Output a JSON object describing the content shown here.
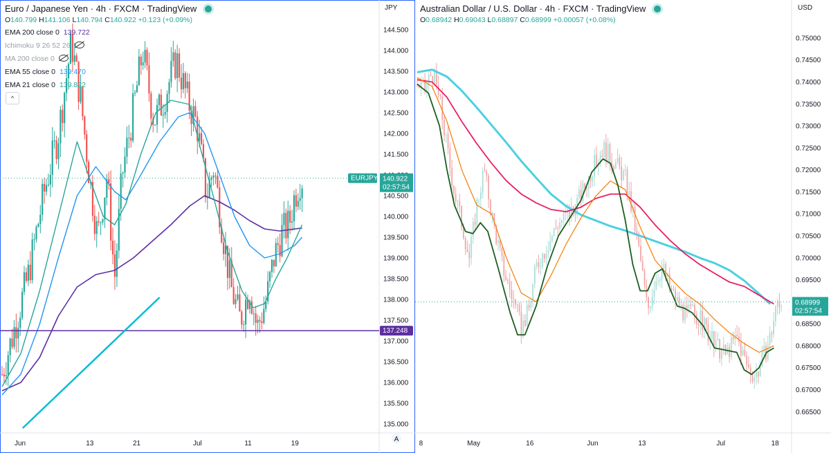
{
  "colors": {
    "up": "#26a69a",
    "down": "#ef5350",
    "upLight": "#a6dcd6",
    "downLight": "#f0a3a3",
    "ema200": "#5c2ea0",
    "ema55": "#2196f3",
    "ema21": "#26a69a",
    "hline": "#5c2ea0",
    "trend": "#00bcd4",
    "audEma200": "#e91e63",
    "audEma55": "#f57c00",
    "audMa": "#4dd0e1",
    "audDark": "#1b5e20"
  },
  "left": {
    "header": {
      "title": "Euro / Japanese Yen",
      "tf": "4h",
      "source": "FXCM",
      "brand": "TradingView"
    },
    "ohlc": {
      "o_label": "O",
      "o": "140.799",
      "h_label": "H",
      "h": "141.106",
      "l_label": "L",
      "l": "140.794",
      "c_label": "C",
      "c": "140.922",
      "chg": "+0.123 (+0.09%)"
    },
    "indicators": [
      {
        "name": "EMA 200 close 0",
        "value": "139.722",
        "color": "#5c2ea0"
      },
      {
        "name": "Ichimoku 9 26 52 26",
        "value": "",
        "color": "#9aa0a6"
      },
      {
        "name": "MA 200 close 0",
        "value": "",
        "color": "#9aa0a6"
      },
      {
        "name": "EMA 55 close 0",
        "value": "139.470",
        "color": "#2196f3"
      },
      {
        "name": "EMA 21 close 0",
        "value": "139.822",
        "color": "#26a69a"
      }
    ],
    "collapse": "^",
    "currency": "JPY",
    "scale_letter": "A",
    "symbol_tag": "EURJPY",
    "price_tag": "140.922",
    "countdown": "02:57:54",
    "line_tag": "137.248",
    "chart_data": {
      "type": "candlestick",
      "title": "Euro / Japanese Yen, 4h, FXCM",
      "ylim": [
        134.85,
        145.05
      ],
      "yticks": [
        "135.000",
        "135.500",
        "136.000",
        "136.500",
        "137.000",
        "137.500",
        "138.000",
        "138.500",
        "139.000",
        "139.500",
        "140.000",
        "140.500",
        "141.000",
        "141.500",
        "142.000",
        "142.500",
        "143.000",
        "143.500",
        "144.000",
        "144.500"
      ],
      "xticks": [
        {
          "label": "Jun",
          "t": 0.048
        },
        {
          "label": "13",
          "t": 0.234
        },
        {
          "label": "21",
          "t": 0.359
        },
        {
          "label": "Jul",
          "t": 0.521
        },
        {
          "label": "11",
          "t": 0.656
        },
        {
          "label": "19",
          "t": 0.781
        }
      ],
      "keypoints": [
        [
          0,
          136.2
        ],
        [
          0.03,
          137.2
        ],
        [
          0.07,
          138.6
        ],
        [
          0.11,
          140.5
        ],
        [
          0.15,
          142.0
        ],
        [
          0.185,
          144.2
        ],
        [
          0.21,
          142.8
        ],
        [
          0.235,
          140.8
        ],
        [
          0.255,
          139.5
        ],
        [
          0.28,
          141.0
        ],
        [
          0.3,
          138.5
        ],
        [
          0.32,
          141.0
        ],
        [
          0.345,
          142.3
        ],
        [
          0.375,
          144.0
        ],
        [
          0.405,
          142.3
        ],
        [
          0.43,
          142.8
        ],
        [
          0.465,
          143.8
        ],
        [
          0.495,
          142.8
        ],
        [
          0.52,
          142.2
        ],
        [
          0.545,
          140.5
        ],
        [
          0.565,
          141.2
        ],
        [
          0.59,
          139.5
        ],
        [
          0.61,
          138.3
        ],
        [
          0.635,
          137.5
        ],
        [
          0.66,
          138.3
        ],
        [
          0.68,
          137.3
        ],
        [
          0.705,
          138.0
        ],
        [
          0.725,
          139.0
        ],
        [
          0.745,
          139.6
        ],
        [
          0.765,
          139.8
        ],
        [
          0.78,
          140.5
        ],
        [
          0.795,
          140.9
        ]
      ],
      "ema21": [
        [
          0,
          135.9
        ],
        [
          0.05,
          136.7
        ],
        [
          0.1,
          138.2
        ],
        [
          0.15,
          140.0
        ],
        [
          0.2,
          141.8
        ],
        [
          0.23,
          141.0
        ],
        [
          0.27,
          140.0
        ],
        [
          0.3,
          139.8
        ],
        [
          0.33,
          140.3
        ],
        [
          0.37,
          141.5
        ],
        [
          0.41,
          142.5
        ],
        [
          0.45,
          142.8
        ],
        [
          0.5,
          142.7
        ],
        [
          0.53,
          141.6
        ],
        [
          0.56,
          140.6
        ],
        [
          0.6,
          139.2
        ],
        [
          0.64,
          138.2
        ],
        [
          0.67,
          137.8
        ],
        [
          0.7,
          137.9
        ],
        [
          0.73,
          138.5
        ],
        [
          0.76,
          139.0
        ],
        [
          0.8,
          139.8
        ]
      ],
      "ema55": [
        [
          0,
          135.7
        ],
        [
          0.05,
          136.2
        ],
        [
          0.1,
          137.4
        ],
        [
          0.15,
          139.0
        ],
        [
          0.2,
          140.5
        ],
        [
          0.25,
          141.2
        ],
        [
          0.3,
          140.6
        ],
        [
          0.33,
          140.4
        ],
        [
          0.37,
          141.0
        ],
        [
          0.42,
          141.8
        ],
        [
          0.47,
          142.4
        ],
        [
          0.5,
          142.5
        ],
        [
          0.54,
          142.0
        ],
        [
          0.58,
          141.0
        ],
        [
          0.62,
          140.0
        ],
        [
          0.66,
          139.3
        ],
        [
          0.7,
          139.0
        ],
        [
          0.74,
          139.1
        ],
        [
          0.78,
          139.3
        ],
        [
          0.8,
          139.5
        ]
      ],
      "ema200": [
        [
          0,
          135.8
        ],
        [
          0.05,
          136.0
        ],
        [
          0.1,
          136.6
        ],
        [
          0.15,
          137.6
        ],
        [
          0.2,
          138.3
        ],
        [
          0.25,
          138.6
        ],
        [
          0.3,
          138.7
        ],
        [
          0.35,
          139.0
        ],
        [
          0.4,
          139.4
        ],
        [
          0.45,
          139.8
        ],
        [
          0.5,
          140.25
        ],
        [
          0.54,
          140.5
        ],
        [
          0.58,
          140.35
        ],
        [
          0.62,
          140.15
        ],
        [
          0.66,
          139.9
        ],
        [
          0.7,
          139.7
        ],
        [
          0.74,
          139.65
        ],
        [
          0.78,
          139.7
        ],
        [
          0.8,
          139.72
        ]
      ],
      "hline": 137.248,
      "trendline": [
        [
          0.055,
          134.9
        ],
        [
          0.42,
          138.05
        ]
      ]
    }
  },
  "right": {
    "header": {
      "title": "Australian Dollar / U.S. Dollar",
      "tf": "4h",
      "source": "FXCM",
      "brand": "TradingView"
    },
    "ohlc": {
      "o_label": "O",
      "o": "0.68942",
      "h_label": "H",
      "h": "0.69043",
      "l_label": "L",
      "l": "0.68897",
      "c_label": "C",
      "c": "0.68999",
      "chg": "+0.00057 (+0.08%)"
    },
    "currency": "USD",
    "price_tag": "0.68999",
    "countdown": "02:57:54",
    "chart_data": {
      "type": "candlestick",
      "title": "Australian Dollar / U.S. Dollar, 4h, FXCM",
      "ylim": [
        0.6608,
        0.7555
      ],
      "yticks": [
        "0.66500",
        "0.67000",
        "0.67500",
        "0.68000",
        "0.68500",
        "0.69000",
        "0.69500",
        "0.70000",
        "0.70500",
        "0.71000",
        "0.71500",
        "0.72000",
        "0.72500",
        "0.73000",
        "0.73500",
        "0.74000",
        "0.74500",
        "0.75000"
      ],
      "xticks": [
        {
          "label": "8",
          "t": 0.01
        },
        {
          "label": "May",
          "t": 0.152
        },
        {
          "label": "16",
          "t": 0.303
        },
        {
          "label": "Jun",
          "t": 0.472
        },
        {
          "label": "13",
          "t": 0.605
        },
        {
          "label": "Jul",
          "t": 0.817
        },
        {
          "label": "18",
          "t": 0.963
        }
      ],
      "keypoints": [
        [
          0,
          0.7395
        ],
        [
          0.02,
          0.738
        ],
        [
          0.04,
          0.7425
        ],
        [
          0.06,
          0.736
        ],
        [
          0.08,
          0.725
        ],
        [
          0.1,
          0.715
        ],
        [
          0.12,
          0.708
        ],
        [
          0.14,
          0.7
        ],
        [
          0.16,
          0.712
        ],
        [
          0.18,
          0.72
        ],
        [
          0.2,
          0.71
        ],
        [
          0.23,
          0.698
        ],
        [
          0.26,
          0.69
        ],
        [
          0.28,
          0.684
        ],
        [
          0.3,
          0.688
        ],
        [
          0.32,
          0.698
        ],
        [
          0.35,
          0.703
        ],
        [
          0.38,
          0.708
        ],
        [
          0.41,
          0.71
        ],
        [
          0.44,
          0.714
        ],
        [
          0.47,
          0.72
        ],
        [
          0.5,
          0.725
        ],
        [
          0.53,
          0.722
        ],
        [
          0.56,
          0.718
        ],
        [
          0.58,
          0.71
        ],
        [
          0.6,
          0.7
        ],
        [
          0.62,
          0.688
        ],
        [
          0.64,
          0.695
        ],
        [
          0.66,
          0.698
        ],
        [
          0.68,
          0.693
        ],
        [
          0.7,
          0.69
        ],
        [
          0.72,
          0.687
        ],
        [
          0.74,
          0.688
        ],
        [
          0.77,
          0.685
        ],
        [
          0.8,
          0.68
        ],
        [
          0.83,
          0.678
        ],
        [
          0.86,
          0.682
        ],
        [
          0.89,
          0.675
        ],
        [
          0.91,
          0.673
        ],
        [
          0.93,
          0.677
        ],
        [
          0.95,
          0.682
        ],
        [
          0.97,
          0.69
        ]
      ],
      "emaDark": [
        [
          0,
          0.7395
        ],
        [
          0.03,
          0.7375
        ],
        [
          0.06,
          0.73
        ],
        [
          0.08,
          0.72
        ],
        [
          0.1,
          0.712
        ],
        [
          0.13,
          0.706
        ],
        [
          0.15,
          0.7055
        ],
        [
          0.17,
          0.708
        ],
        [
          0.19,
          0.706
        ],
        [
          0.22,
          0.697
        ],
        [
          0.25,
          0.6875
        ],
        [
          0.27,
          0.6825
        ],
        [
          0.29,
          0.6825
        ],
        [
          0.32,
          0.689
        ],
        [
          0.35,
          0.698
        ],
        [
          0.38,
          0.705
        ],
        [
          0.41,
          0.709
        ],
        [
          0.44,
          0.713
        ],
        [
          0.47,
          0.7195
        ],
        [
          0.5,
          0.7225
        ],
        [
          0.52,
          0.7215
        ],
        [
          0.54,
          0.7165
        ],
        [
          0.56,
          0.7085
        ],
        [
          0.58,
          0.6985
        ],
        [
          0.6,
          0.6925
        ],
        [
          0.62,
          0.6925
        ],
        [
          0.64,
          0.6965
        ],
        [
          0.66,
          0.6975
        ],
        [
          0.68,
          0.693
        ],
        [
          0.7,
          0.689
        ],
        [
          0.72,
          0.6885
        ],
        [
          0.74,
          0.6875
        ],
        [
          0.77,
          0.6845
        ],
        [
          0.8,
          0.6795
        ],
        [
          0.83,
          0.679
        ],
        [
          0.86,
          0.6785
        ],
        [
          0.88,
          0.6745
        ],
        [
          0.9,
          0.6735
        ],
        [
          0.92,
          0.675
        ],
        [
          0.94,
          0.6785
        ],
        [
          0.96,
          0.6795
        ]
      ],
      "ema55": [
        [
          0,
          0.741
        ],
        [
          0.04,
          0.739
        ],
        [
          0.08,
          0.731
        ],
        [
          0.12,
          0.72
        ],
        [
          0.16,
          0.712
        ],
        [
          0.2,
          0.71
        ],
        [
          0.24,
          0.7
        ],
        [
          0.28,
          0.692
        ],
        [
          0.32,
          0.69
        ],
        [
          0.36,
          0.696
        ],
        [
          0.4,
          0.703
        ],
        [
          0.44,
          0.709
        ],
        [
          0.48,
          0.714
        ],
        [
          0.52,
          0.7175
        ],
        [
          0.56,
          0.7155
        ],
        [
          0.6,
          0.707
        ],
        [
          0.64,
          0.6995
        ],
        [
          0.68,
          0.6955
        ],
        [
          0.72,
          0.692
        ],
        [
          0.76,
          0.6895
        ],
        [
          0.8,
          0.686
        ],
        [
          0.84,
          0.683
        ],
        [
          0.88,
          0.6805
        ],
        [
          0.92,
          0.6785
        ],
        [
          0.96,
          0.68
        ]
      ],
      "ema200": [
        [
          0,
          0.7405
        ],
        [
          0.04,
          0.74
        ],
        [
          0.08,
          0.7365
        ],
        [
          0.12,
          0.731
        ],
        [
          0.16,
          0.726
        ],
        [
          0.2,
          0.7215
        ],
        [
          0.24,
          0.7175
        ],
        [
          0.28,
          0.7145
        ],
        [
          0.32,
          0.7125
        ],
        [
          0.36,
          0.711
        ],
        [
          0.4,
          0.7105
        ],
        [
          0.44,
          0.7115
        ],
        [
          0.48,
          0.7135
        ],
        [
          0.52,
          0.7145
        ],
        [
          0.56,
          0.7145
        ],
        [
          0.6,
          0.7115
        ],
        [
          0.64,
          0.7075
        ],
        [
          0.68,
          0.704
        ],
        [
          0.72,
          0.701
        ],
        [
          0.76,
          0.6985
        ],
        [
          0.8,
          0.6965
        ],
        [
          0.84,
          0.6945
        ],
        [
          0.88,
          0.6935
        ],
        [
          0.92,
          0.6915
        ],
        [
          0.96,
          0.6895
        ]
      ],
      "ma200": [
        [
          0,
          0.7422
        ],
        [
          0.04,
          0.7428
        ],
        [
          0.08,
          0.7412
        ],
        [
          0.12,
          0.738
        ],
        [
          0.16,
          0.7342
        ],
        [
          0.2,
          0.7302
        ],
        [
          0.24,
          0.7262
        ],
        [
          0.28,
          0.722
        ],
        [
          0.32,
          0.7182
        ],
        [
          0.36,
          0.7145
        ],
        [
          0.4,
          0.7118
        ],
        [
          0.44,
          0.7098
        ],
        [
          0.48,
          0.7085
        ],
        [
          0.52,
          0.7072
        ],
        [
          0.56,
          0.7062
        ],
        [
          0.6,
          0.705
        ],
        [
          0.64,
          0.7038
        ],
        [
          0.68,
          0.7026
        ],
        [
          0.72,
          0.7014
        ],
        [
          0.76,
          0.7
        ],
        [
          0.8,
          0.6988
        ],
        [
          0.84,
          0.6972
        ],
        [
          0.88,
          0.6948
        ],
        [
          0.92,
          0.6918
        ],
        [
          0.95,
          0.6895
        ]
      ],
      "dotted": 0.68999
    }
  }
}
